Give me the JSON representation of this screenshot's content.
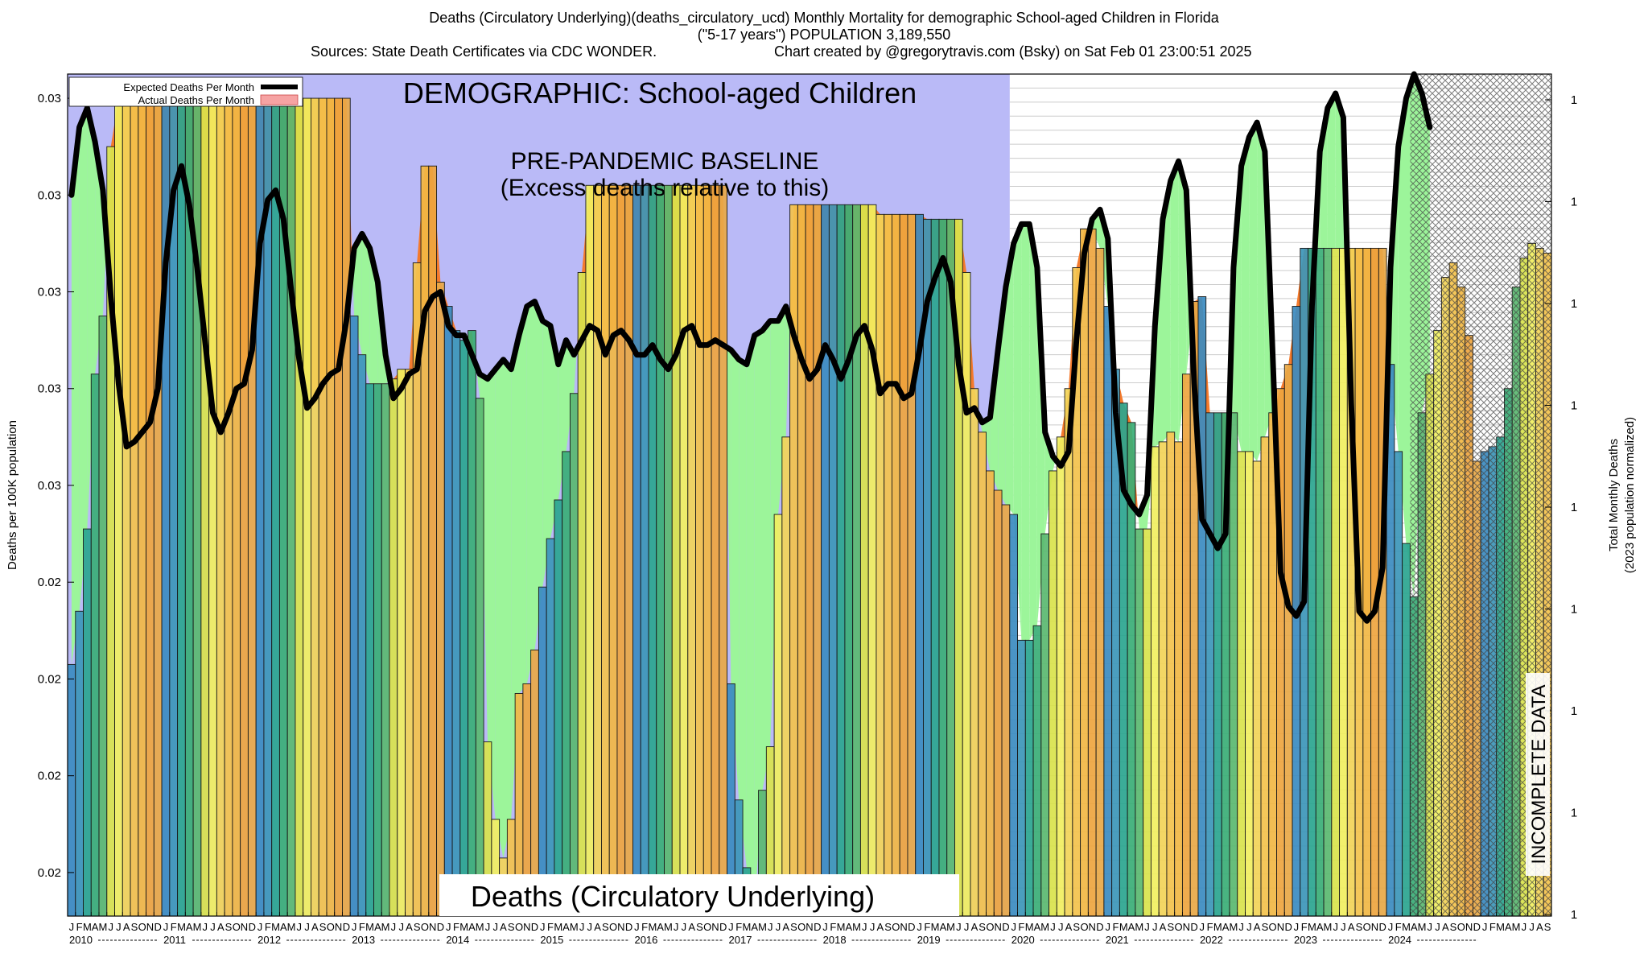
{
  "header": {
    "title_line1": "Deaths (Circulatory Underlying)(deaths_circulatory_ucd) Monthly Mortality for demographic School-aged Children in Florida",
    "title_line2": "(\"5-17 years\") POPULATION 3,189,550",
    "sources": "Sources: State Death Certificates via CDC WONDER.",
    "credit": "Chart created by @gregorytravis.com (Bsky) on Sat Feb 01 23:00:51 2025"
  },
  "chart_data": {
    "type": "bar",
    "demographic_label": "DEMOGRAPHIC: School-aged Children",
    "baseline_label_1": "PRE-PANDEMIC BASELINE",
    "baseline_label_2": "(Excess deaths relative to this)",
    "cause_label": "Deaths (Circulatory Underlying)",
    "incomplete_label": "INCOMPLETE DATA",
    "ylabel": "Deaths per 100K population",
    "y2label_1": "Total Monthly Deaths",
    "y2label_2": "(2023 population normalized)",
    "legend": {
      "expected": "Expected Deaths Per Month",
      "actual": "Actual Deaths Per Month",
      "position": "top-left"
    },
    "y_tick_labels": [
      "0.03",
      "0.03",
      "0.03",
      "0.03",
      "0.03",
      "0.02",
      "0.02",
      "0.02",
      "0.02"
    ],
    "y_tick_values": [
      0.0335,
      0.0315,
      0.0295,
      0.0275,
      0.0255,
      0.0235,
      0.0215,
      0.0195,
      0.0175
    ],
    "y2_tick_labels": [
      "1",
      "1",
      "1",
      "1",
      "1",
      "1",
      "1",
      "1",
      "1"
    ],
    "ylim": [
      0.0166,
      0.034
    ],
    "month_letters": [
      "J",
      "F",
      "M",
      "A",
      "M",
      "J",
      "J",
      "A",
      "S",
      "O",
      "N",
      "D"
    ],
    "years": [
      "2010",
      "2011",
      "2012",
      "2013",
      "2014",
      "2015",
      "2016",
      "2017",
      "2018",
      "2019",
      "2020",
      "2021",
      "2022",
      "2023",
      "2024"
    ],
    "baseline_end_month_index": 120,
    "incomplete_start_month_index": 171,
    "actual": [
      0.0218,
      0.0229,
      0.0246,
      0.0278,
      0.029,
      0.0325,
      0.0335,
      0.0335,
      0.0335,
      0.0335,
      0.0335,
      0.0335,
      0.0335,
      0.0335,
      0.0335,
      0.0335,
      0.0335,
      0.0335,
      0.0335,
      0.0335,
      0.0335,
      0.0335,
      0.0335,
      0.0335,
      0.0335,
      0.0335,
      0.0335,
      0.0335,
      0.0335,
      0.0335,
      0.0335,
      0.0335,
      0.0335,
      0.0335,
      0.0335,
      0.0335,
      0.029,
      0.0282,
      0.0276,
      0.0276,
      0.0276,
      0.0277,
      0.0279,
      0.0279,
      0.0301,
      0.0321,
      0.0321,
      0.0297,
      0.0292,
      0.0287,
      0.0285,
      0.0287,
      0.0273,
      0.0202,
      0.0186,
      0.0178,
      0.0186,
      0.0212,
      0.0214,
      0.0221,
      0.0234,
      0.0244,
      0.0252,
      0.0262,
      0.0274,
      0.0299,
      0.0317,
      0.0317,
      0.0317,
      0.0317,
      0.0317,
      0.0317,
      0.0317,
      0.0317,
      0.0317,
      0.0317,
      0.0317,
      0.0317,
      0.0317,
      0.0317,
      0.0317,
      0.0317,
      0.0317,
      0.0317,
      0.0214,
      0.019,
      0.0176,
      0.0168,
      0.0192,
      0.0201,
      0.0249,
      0.0265,
      0.0313,
      0.0313,
      0.0313,
      0.0313,
      0.0313,
      0.0313,
      0.0313,
      0.0313,
      0.0313,
      0.0313,
      0.0313,
      0.0311,
      0.0311,
      0.0311,
      0.0311,
      0.0311,
      0.0311,
      0.031,
      0.031,
      0.031,
      0.031,
      0.031,
      0.0299,
      0.0275,
      0.0266,
      0.0258,
      0.0254,
      0.0251,
      0.0249,
      0.0223,
      0.0223,
      0.0226,
      0.0245,
      0.0258,
      0.0265,
      0.0275,
      0.03,
      0.0308,
      0.0308,
      0.0304,
      0.0292,
      0.0279,
      0.0272,
      0.0268,
      0.0246,
      0.0246,
      0.0263,
      0.0264,
      0.0266,
      0.0264,
      0.0278,
      0.0293,
      0.0294,
      0.027,
      0.027,
      0.027,
      0.027,
      0.0262,
      0.0262,
      0.026,
      0.0265,
      0.027,
      0.0275,
      0.028,
      0.0292,
      0.0304,
      0.0304,
      0.0304,
      0.0304,
      0.0304,
      0.0304,
      0.0304,
      0.0304,
      0.0304,
      0.0304,
      0.0304,
      0.028,
      0.0262,
      0.0243,
      0.0232,
      0.027,
      0.0278,
      0.0287,
      0.0298,
      0.0301,
      0.0296,
      0.0286,
      0.026,
      0.0262,
      0.0263,
      0.0265,
      0.0275,
      0.0296,
      0.0302,
      0.0305,
      0.0304,
      0.0303
    ],
    "expected": [
      0.0315,
      0.0329,
      0.0333,
      0.0326,
      0.0316,
      0.0294,
      0.0276,
      0.0263,
      0.0264,
      0.0266,
      0.0268,
      0.0275,
      0.0301,
      0.0316,
      0.0321,
      0.0313,
      0.03,
      0.0285,
      0.027,
      0.0266,
      0.027,
      0.0275,
      0.0276,
      0.0283,
      0.0305,
      0.0314,
      0.0316,
      0.031,
      0.0295,
      0.0281,
      0.0271,
      0.0273,
      0.0276,
      0.0278,
      0.0279,
      0.0289,
      0.0304,
      0.0307,
      0.0304,
      0.0297,
      0.0282,
      0.0273,
      0.0275,
      0.0278,
      0.0279,
      0.0291,
      0.0294,
      0.0295,
      0.0288,
      0.0286,
      0.0286,
      0.0282,
      0.0278,
      0.0277,
      0.0279,
      0.0281,
      0.0279,
      0.0286,
      0.0292,
      0.0293,
      0.0289,
      0.0288,
      0.028,
      0.0285,
      0.0282,
      0.0285,
      0.0288,
      0.0287,
      0.0282,
      0.0286,
      0.0287,
      0.0285,
      0.0282,
      0.0282,
      0.0284,
      0.0281,
      0.0279,
      0.0282,
      0.0287,
      0.0288,
      0.0284,
      0.0284,
      0.0285,
      0.0284,
      0.0283,
      0.0281,
      0.028,
      0.0286,
      0.0287,
      0.0289,
      0.0289,
      0.0292,
      0.0286,
      0.0281,
      0.0277,
      0.0279,
      0.0284,
      0.0281,
      0.0277,
      0.0281,
      0.0286,
      0.0288,
      0.0283,
      0.0274,
      0.0276,
      0.0276,
      0.0273,
      0.0274,
      0.0283,
      0.0293,
      0.0298,
      0.0302,
      0.0297,
      0.028,
      0.027,
      0.0271,
      0.0268,
      0.0269,
      0.0283,
      0.0296,
      0.0305,
      0.0309,
      0.0309,
      0.03,
      0.0266,
      0.0261,
      0.0259,
      0.0262,
      0.0285,
      0.0303,
      0.031,
      0.0312,
      0.0306,
      0.027,
      0.0254,
      0.0251,
      0.0249,
      0.0253,
      0.0288,
      0.031,
      0.0318,
      0.0322,
      0.0316,
      0.0276,
      0.0248,
      0.0245,
      0.0242,
      0.0245,
      0.03,
      0.0321,
      0.0327,
      0.033,
      0.0324,
      0.0282,
      0.0237,
      0.023,
      0.0228,
      0.0231,
      0.0292,
      0.0324,
      0.0333,
      0.0336,
      0.0331,
      0.0272,
      0.0229,
      0.0227,
      0.0229,
      0.0238,
      0.03,
      0.0325,
      0.0335,
      0.034,
      0.0336,
      0.0329
    ]
  },
  "colors": {
    "jan": "#3b8bc0",
    "feb": "#3c96b8",
    "mar": "#2aa58f",
    "apr": "#3aae76",
    "may": "#5ab870",
    "jun": "#d9e34c",
    "jul": "#f1ef5f",
    "aug": "#f2d458",
    "sep": "#f3c24c",
    "oct": "#f1b744",
    "nov": "#eea53f",
    "dec": "#e8a846",
    "baseline": "#babaf7",
    "excess": "#f47a2c",
    "deficit": "#9cf59a",
    "expected_line": "#000000"
  }
}
